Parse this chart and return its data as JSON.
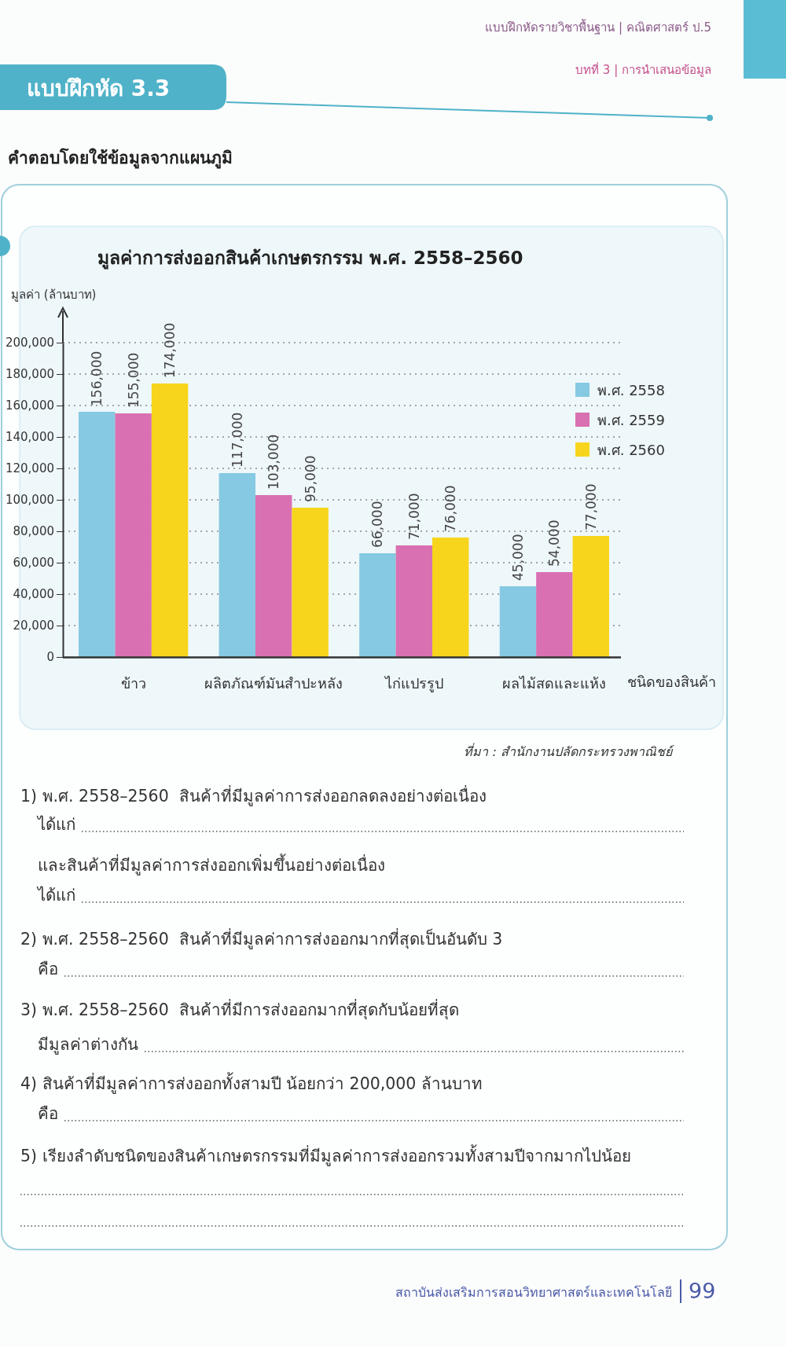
{
  "chart_data": {
    "type": "bar",
    "title": "มูลค่าการส่งออกสินค้าเกษตรกรรม พ.ศ. 2558–2560",
    "ylabel": "มูลค่า (ล้านบาท)",
    "xlabel": "ชนิดของสินค้า",
    "categories": [
      "ข้าว",
      "ผลิตภัณฑ์มันสำปะหลัง",
      "ไก่แปรรูป",
      "ผลไม้สดและแห้ง"
    ],
    "series": [
      {
        "name": "พ.ศ. 2558",
        "color": "#86c9e2",
        "values": [
          156000,
          117000,
          66000,
          45000
        ],
        "value_labels": [
          "156,000",
          "117,000",
          "66,000",
          "45,000"
        ]
      },
      {
        "name": "พ.ศ. 2559",
        "color": "#d970b1",
        "values": [
          155000,
          103000,
          71000,
          54000
        ],
        "value_labels": [
          "155,000",
          "103,000",
          "71,000",
          "54,000"
        ]
      },
      {
        "name": "พ.ศ. 2560",
        "color": "#f7d51c",
        "values": [
          174000,
          95000,
          76000,
          77000
        ],
        "value_labels": [
          "174,000",
          "95,000",
          "76,000",
          "77,000"
        ]
      }
    ],
    "ylim": [
      0,
      200000
    ],
    "yticks": [
      0,
      {
        "value": 20000,
        "label": "20,000"
      },
      {
        "value": 40000,
        "label": "40,000"
      },
      {
        "value": 60000,
        "label": "60,000"
      },
      {
        "value": 80000,
        "label": "80,000"
      },
      {
        "value": 100000,
        "label": "100,000"
      },
      {
        "value": 120000,
        "label": "120,000"
      },
      {
        "value": 140000,
        "label": "140,000"
      },
      {
        "value": 160000,
        "label": "160,000"
      },
      {
        "value": 180000,
        "label": "180,000"
      },
      {
        "value": 200000,
        "label": "200,000"
      }
    ],
    "grid": "y",
    "legend": "top right",
    "annotations": [
      "แบบฝึกหัดรายวิชาพื้นฐาน | คณิตศาสตร์ ป.5",
      "บทที่ 3 | การนำเสนอข้อมูล",
      "แบบฝึกหัด 3.3",
      "คำตอบโดยใช้ข้อมูลจากแผนภูมิ",
      "ที่มา : สำนักงานปลัดกระทรวงพาณิชย์",
      "1) พ.ศ. 2558–2560  สินค้าที่มีมูลค่าการส่งออกลดลงอย่างต่อเนื่อง",
      "ได้แก่",
      "และสินค้าที่มีมูลค่าการส่งออกเพิ่มขึ้นอย่างต่อเนื่อง",
      "ได้แก่",
      "2) พ.ศ. 2558–2560  สินค้าที่มีมูลค่าการส่งออกมากที่สุดเป็นอันดับ 3",
      "คือ",
      "3) พ.ศ. 2558–2560  สินค้าที่มีการส่งออกมากที่สุดกับน้อยที่สุด",
      "มีมูลค่าต่างกัน",
      "4) สินค้าที่มีมูลค่าการส่งออกทั้งสามปี น้อยกว่า 200,000 ล้านบาท",
      "คือ",
      "5) เรียงลำดับชนิดของสินค้าเกษตรกรรมที่มีมูลค่าการส่งออกรวมทั้งสามปีจากมากไปน้อย",
      "สถาบันส่งเสริมการสอนวิทยาศาสตร์และเทคโนโลยี",
      "99"
    ]
  }
}
